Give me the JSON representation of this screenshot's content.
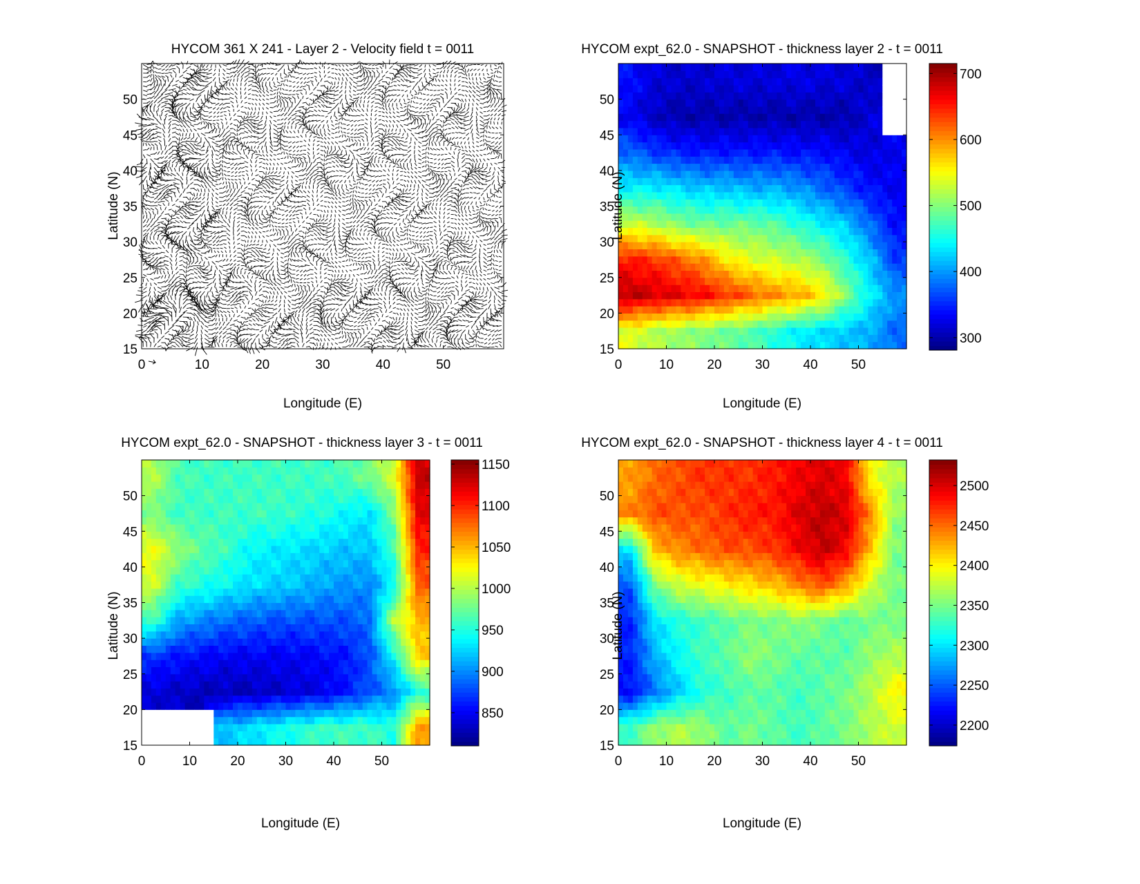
{
  "chart_data": [
    {
      "type": "quiver",
      "title": "HYCOM 361 X 241 - Layer 2 - Velocity field  t = 0011",
      "xlabel": "Longitude (E)",
      "ylabel": "Latitude (N)",
      "xlim": [
        0,
        60
      ],
      "ylim": [
        15,
        55
      ],
      "xticks": [
        "0",
        "10",
        "20",
        "30",
        "40",
        "50"
      ],
      "yticks": [
        "15",
        "20",
        "25",
        "30",
        "35",
        "40",
        "45",
        "50"
      ],
      "color": "#000000"
    },
    {
      "type": "heatmap",
      "title": "HYCOM expt_62.0 - SNAPSHOT - thickness layer 2 - t = 0011",
      "xlabel": "Longitude (E)",
      "ylabel": "Latitude (N)",
      "xlim": [
        0,
        60
      ],
      "ylim": [
        15,
        55
      ],
      "xticks": [
        "0",
        "10",
        "20",
        "30",
        "40",
        "50"
      ],
      "yticks": [
        "15",
        "20",
        "25",
        "30",
        "35",
        "40",
        "45",
        "50"
      ],
      "colormap": "jet",
      "clim": [
        281,
        715
      ],
      "colorbar_ticks": [
        "300",
        "400",
        "500",
        "600",
        "700"
      ],
      "lon_centers": [
        2.5,
        7.5,
        12.5,
        17.5,
        22.5,
        27.5,
        32.5,
        37.5,
        42.5,
        47.5,
        52.5,
        57.5
      ],
      "lat_centers": [
        52.5,
        47.5,
        42.5,
        37.5,
        32.5,
        27.5,
        22.5,
        17.5
      ],
      "values": [
        [
          340,
          320,
          315,
          315,
          320,
          320,
          320,
          325,
          320,
          320,
          310,
          null
        ],
        [
          330,
          310,
          300,
          300,
          300,
          300,
          300,
          300,
          300,
          300,
          320,
          null
        ],
        [
          380,
          360,
          350,
          345,
          345,
          345,
          345,
          340,
          340,
          330,
          320,
          330
        ],
        [
          440,
          440,
          430,
          420,
          420,
          410,
          410,
          400,
          380,
          360,
          340,
          330
        ],
        [
          530,
          520,
          500,
          490,
          490,
          490,
          480,
          460,
          440,
          420,
          380,
          340
        ],
        [
          650,
          640,
          620,
          600,
          560,
          540,
          530,
          520,
          500,
          460,
          420,
          360
        ],
        [
          690,
          680,
          670,
          660,
          640,
          620,
          600,
          590,
          560,
          500,
          440,
          400
        ],
        [
          540,
          520,
          510,
          500,
          490,
          480,
          460,
          440,
          430,
          420,
          410,
          380
        ]
      ]
    },
    {
      "type": "heatmap",
      "title": "HYCOM expt_62.0 - SNAPSHOT - thickness layer 3 - t = 0011",
      "xlabel": "Longitude (E)",
      "ylabel": "Latitude (N)",
      "xlim": [
        0,
        60
      ],
      "ylim": [
        15,
        55
      ],
      "xticks": [
        "0",
        "10",
        "20",
        "30",
        "40",
        "50"
      ],
      "yticks": [
        "15",
        "20",
        "25",
        "30",
        "35",
        "40",
        "45",
        "50"
      ],
      "colormap": "jet",
      "clim": [
        810,
        1155
      ],
      "colorbar_ticks": [
        "850",
        "900",
        "950",
        "1000",
        "1050",
        "1100",
        "1150"
      ],
      "lon_centers": [
        2.5,
        7.5,
        12.5,
        17.5,
        22.5,
        27.5,
        32.5,
        37.5,
        42.5,
        47.5,
        52.5,
        57.5
      ],
      "lat_centers": [
        52.5,
        47.5,
        42.5,
        37.5,
        32.5,
        27.5,
        22.5,
        17.5
      ],
      "values": [
        [
          1000,
          965,
          960,
          960,
          960,
          960,
          960,
          960,
          965,
          980,
          1010,
          1130
        ],
        [
          980,
          960,
          960,
          960,
          960,
          960,
          955,
          950,
          940,
          930,
          980,
          1120
        ],
        [
          1020,
          990,
          970,
          960,
          940,
          935,
          930,
          925,
          920,
          920,
          960,
          1100
        ],
        [
          1010,
          960,
          950,
          940,
          930,
          925,
          920,
          910,
          905,
          900,
          940,
          1080
        ],
        [
          960,
          910,
          900,
          890,
          885,
          880,
          880,
          880,
          880,
          890,
          1000,
          1050
        ],
        [
          870,
          860,
          855,
          850,
          850,
          850,
          850,
          855,
          860,
          880,
          940,
          1040
        ],
        [
          840,
          835,
          830,
          830,
          830,
          835,
          840,
          845,
          860,
          880,
          900,
          950
        ],
        [
          null,
          null,
          null,
          920,
          930,
          940,
          950,
          960,
          960,
          960,
          950,
          1060
        ]
      ]
    },
    {
      "type": "heatmap",
      "title": "HYCOM expt_62.0 - SNAPSHOT - thickness layer 4 - t = 0011",
      "xlabel": "Longitude (E)",
      "ylabel": "Latitude (N)",
      "xlim": [
        0,
        60
      ],
      "ylim": [
        15,
        55
      ],
      "xticks": [
        "0",
        "10",
        "20",
        "30",
        "40",
        "50"
      ],
      "yticks": [
        "15",
        "20",
        "25",
        "30",
        "35",
        "40",
        "45",
        "50"
      ],
      "colormap": "jet",
      "clim": [
        2174,
        2532
      ],
      "colorbar_ticks": [
        "2200",
        "2250",
        "2300",
        "2350",
        "2400",
        "2450",
        "2500"
      ],
      "lon_centers": [
        2.5,
        7.5,
        12.5,
        17.5,
        22.5,
        27.5,
        32.5,
        37.5,
        42.5,
        47.5,
        52.5,
        57.5
      ],
      "lat_centers": [
        52.5,
        47.5,
        42.5,
        37.5,
        32.5,
        27.5,
        22.5,
        17.5
      ],
      "values": [
        [
          2430,
          2450,
          2460,
          2470,
          2470,
          2470,
          2480,
          2490,
          2500,
          2490,
          2400,
          2370
        ],
        [
          2440,
          2460,
          2460,
          2460,
          2470,
          2480,
          2480,
          2500,
          2510,
          2500,
          2440,
          2360
        ],
        [
          2300,
          2420,
          2440,
          2450,
          2460,
          2460,
          2470,
          2490,
          2510,
          2490,
          2420,
          2350
        ],
        [
          2250,
          2350,
          2380,
          2390,
          2400,
          2410,
          2420,
          2440,
          2460,
          2430,
          2380,
          2350
        ],
        [
          2230,
          2300,
          2320,
          2330,
          2340,
          2350,
          2350,
          2360,
          2350,
          2340,
          2350,
          2350
        ],
        [
          2230,
          2280,
          2310,
          2330,
          2340,
          2360,
          2350,
          2340,
          2340,
          2340,
          2360,
          2370
        ],
        [
          2220,
          2260,
          2290,
          2320,
          2330,
          2340,
          2340,
          2330,
          2340,
          2350,
          2370,
          2400
        ],
        [
          2330,
          2360,
          2370,
          2360,
          2340,
          2350,
          2340,
          2330,
          2340,
          2350,
          2370,
          2380
        ]
      ]
    }
  ]
}
